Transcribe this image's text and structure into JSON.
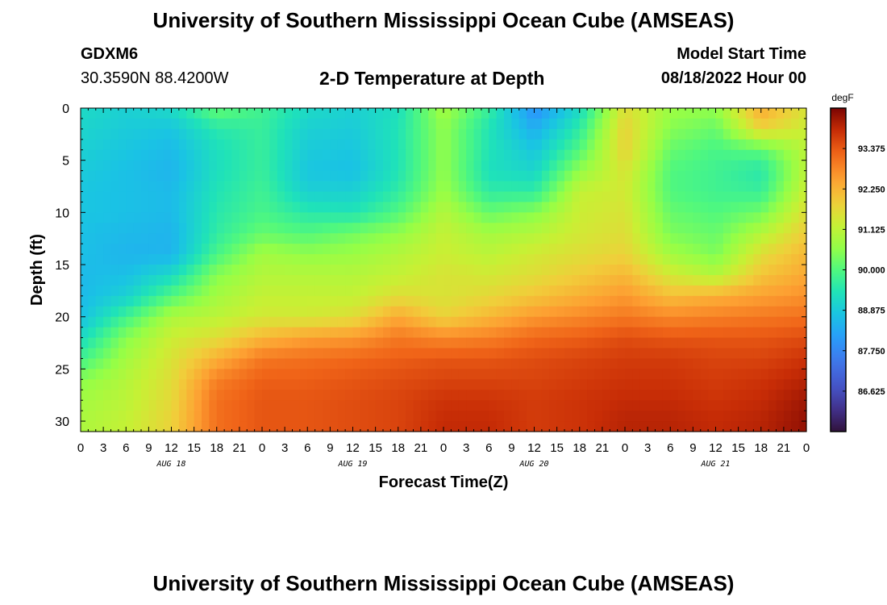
{
  "page": {
    "title": "University of Southern Mississippi Ocean Cube (AMSEAS)",
    "station": "GDXM6",
    "coordinates": "30.3590N  88.4200W",
    "chart_title": "2-D Temperature at Depth",
    "start_label": "Model Start Time",
    "start_value": "08/18/2022 Hour 00",
    "footer_title": "University of Southern Mississippi Ocean Cube (AMSEAS)"
  },
  "chart_data": {
    "type": "heatmap",
    "title": "2-D Temperature at Depth",
    "xlabel": "Forecast Time(Z)",
    "ylabel": "Depth (ft)",
    "x_unit": "hours since model start",
    "xlim": [
      0,
      96
    ],
    "ylim": [
      31,
      0
    ],
    "x_ticks": [
      0,
      3,
      6,
      9,
      12,
      15,
      18,
      21,
      24,
      27,
      30,
      33,
      36,
      39,
      42,
      45,
      48,
      51,
      54,
      57,
      60,
      63,
      66,
      69,
      72,
      75,
      78,
      81,
      84,
      87,
      90,
      93,
      96
    ],
    "x_tick_labels": [
      "0",
      "3",
      "6",
      "9",
      "12",
      "15",
      "18",
      "21",
      "0",
      "3",
      "6",
      "9",
      "12",
      "15",
      "18",
      "21",
      "0",
      "3",
      "6",
      "9",
      "12",
      "15",
      "18",
      "21",
      "0",
      "3",
      "6",
      "9",
      "12",
      "15",
      "18",
      "21",
      "0"
    ],
    "day_labels": [
      {
        "x": 12,
        "label": "AUG 18"
      },
      {
        "x": 36,
        "label": "AUG 19"
      },
      {
        "x": 60,
        "label": "AUG 20"
      },
      {
        "x": 84,
        "label": "AUG 21"
      }
    ],
    "y_ticks": [
      0,
      5,
      10,
      15,
      20,
      25,
      30
    ],
    "y_tick_labels": [
      "0",
      "5",
      "10",
      "15",
      "20",
      "25",
      "30"
    ],
    "colorbar": {
      "unit": "degF",
      "min": 85.5,
      "max": 94.5,
      "ticks": [
        93.375,
        92.25,
        91.125,
        90.0,
        88.875,
        87.75,
        86.625
      ],
      "tick_labels": [
        "93.375",
        "92.250",
        "91.125",
        "90.000",
        "88.875",
        "87.750",
        "86.625"
      ]
    },
    "grid": false,
    "depths": [
      0,
      2,
      4,
      6,
      8,
      10,
      12,
      14,
      16,
      18,
      20,
      22,
      24,
      26,
      28,
      30
    ],
    "times": [
      0,
      6,
      12,
      18,
      24,
      30,
      36,
      42,
      48,
      54,
      60,
      66,
      72,
      78,
      84,
      90,
      96
    ],
    "values": [
      [
        89.2,
        89.0,
        89.2,
        90.2,
        89.8,
        89.2,
        89.0,
        89.3,
        90.8,
        89.7,
        87.9,
        89.2,
        91.6,
        90.7,
        90.6,
        92.4,
        91.5
      ],
      [
        89.1,
        88.9,
        88.8,
        89.5,
        89.7,
        89.0,
        88.9,
        89.4,
        90.6,
        89.4,
        88.4,
        89.6,
        91.8,
        90.5,
        90.2,
        91.8,
        91.3
      ],
      [
        89.0,
        88.8,
        88.6,
        89.3,
        89.7,
        88.9,
        88.8,
        89.4,
        90.6,
        89.4,
        88.8,
        90.0,
        91.8,
        90.2,
        89.9,
        90.1,
        91.1
      ],
      [
        88.9,
        88.7,
        88.5,
        89.3,
        89.7,
        88.8,
        88.7,
        89.4,
        90.6,
        89.3,
        89.1,
        90.6,
        91.5,
        90.0,
        89.8,
        89.5,
        91.1
      ],
      [
        88.8,
        88.7,
        88.6,
        89.4,
        89.8,
        89.0,
        89.0,
        89.6,
        90.7,
        89.6,
        89.6,
        91.2,
        91.4,
        90.0,
        89.8,
        89.7,
        91.3
      ],
      [
        88.8,
        88.7,
        88.6,
        89.5,
        89.9,
        89.5,
        89.4,
        90.0,
        91.0,
        90.2,
        90.5,
        91.3,
        91.5,
        90.2,
        90.0,
        90.3,
        91.6
      ],
      [
        88.7,
        88.6,
        88.5,
        89.6,
        90.2,
        90.0,
        90.3,
        90.6,
        91.2,
        90.8,
        91.0,
        91.4,
        91.6,
        90.4,
        90.2,
        91.0,
        91.9
      ],
      [
        88.7,
        88.5,
        88.5,
        89.9,
        90.8,
        90.6,
        90.7,
        91.0,
        91.3,
        91.1,
        91.4,
        91.6,
        91.8,
        90.8,
        90.4,
        91.6,
        92.2
      ],
      [
        88.6,
        88.7,
        89.2,
        90.5,
        91.0,
        91.0,
        91.0,
        91.2,
        91.5,
        91.4,
        91.6,
        91.9,
        92.2,
        91.4,
        91.0,
        92.0,
        92.4
      ],
      [
        88.6,
        89.0,
        90.0,
        90.8,
        91.2,
        91.2,
        91.2,
        91.6,
        91.5,
        91.7,
        92.0,
        92.3,
        92.6,
        92.1,
        92.3,
        92.5,
        92.7
      ],
      [
        88.7,
        89.8,
        90.9,
        91.1,
        91.4,
        91.4,
        91.6,
        92.4,
        91.8,
        92.2,
        92.6,
        92.8,
        93.0,
        92.8,
        92.9,
        93.0,
        93.1
      ],
      [
        89.2,
        90.5,
        91.3,
        91.6,
        92.2,
        92.5,
        92.6,
        93.0,
        92.8,
        92.9,
        93.2,
        93.3,
        93.5,
        93.4,
        93.4,
        93.4,
        93.5
      ],
      [
        89.8,
        90.8,
        91.5,
        92.3,
        93.0,
        93.1,
        93.2,
        93.3,
        93.4,
        93.4,
        93.5,
        93.6,
        93.7,
        93.7,
        93.6,
        93.6,
        93.8
      ],
      [
        90.5,
        91.0,
        91.6,
        92.9,
        93.3,
        93.3,
        93.4,
        93.5,
        93.6,
        93.6,
        93.6,
        93.7,
        93.8,
        93.8,
        93.7,
        93.8,
        94.0
      ],
      [
        90.8,
        91.1,
        91.7,
        93.1,
        93.4,
        93.4,
        93.5,
        93.6,
        93.8,
        93.8,
        93.7,
        93.8,
        93.9,
        93.9,
        93.8,
        93.9,
        94.2
      ],
      [
        90.9,
        91.2,
        91.8,
        93.1,
        93.4,
        93.4,
        93.5,
        93.6,
        93.9,
        93.9,
        93.7,
        93.8,
        94.0,
        94.0,
        93.9,
        94.0,
        94.3
      ]
    ]
  }
}
